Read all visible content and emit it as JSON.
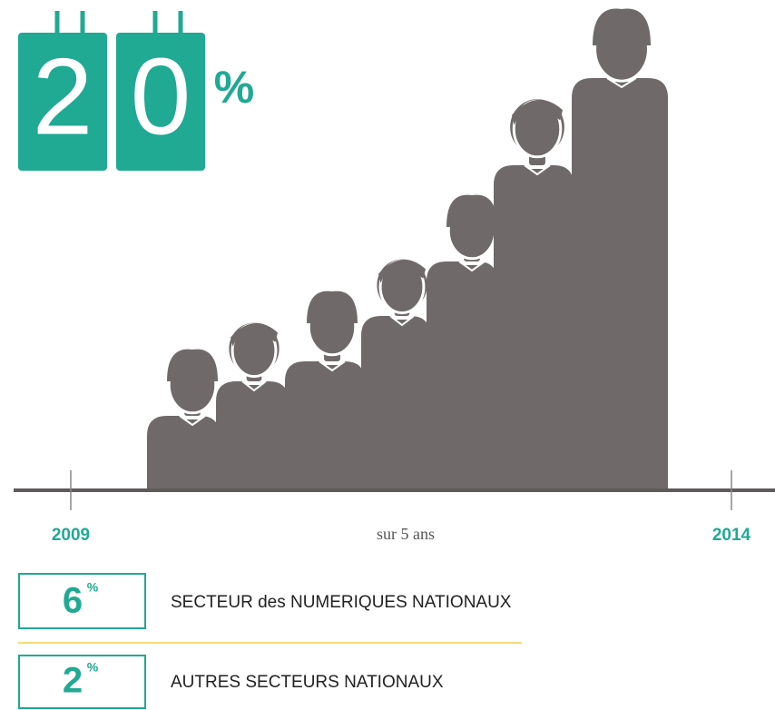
{
  "headline": {
    "digits": [
      "2",
      "0"
    ],
    "symbol": "%"
  },
  "timeline": {
    "start": "2009",
    "middle": "sur 5 ans",
    "end": "2014"
  },
  "stats": [
    {
      "value": "6",
      "symbol": "%",
      "label": "SECTEUR des NUMERIQUES NATIONAUX"
    },
    {
      "value": "2",
      "symbol": "%",
      "label": "AUTRES SECTEURS NATIONAUX"
    }
  ]
}
